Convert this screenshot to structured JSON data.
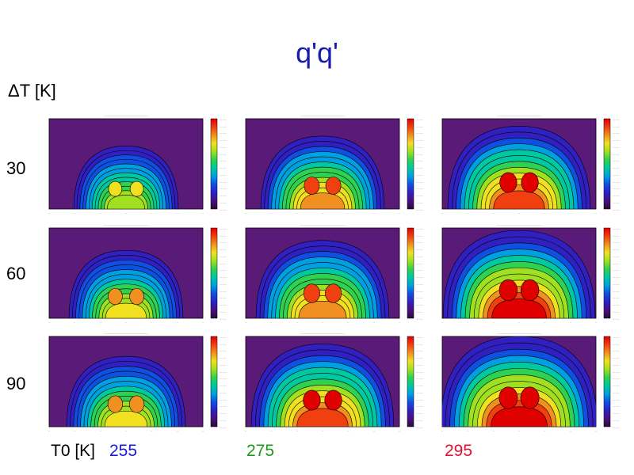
{
  "title": "q'q'",
  "row_axis_label": "ΔT [K]",
  "col_axis_label": "T0 [K]",
  "rows": [
    "30",
    "60",
    "90"
  ],
  "cols": [
    {
      "label": "255",
      "color": "#1a1ad6"
    },
    {
      "label": "275",
      "color": "#1a9a1a"
    },
    {
      "label": "295",
      "color": "#e0102e"
    }
  ],
  "colors": {
    "title": "#1b1bb0",
    "background_field": "#5a1a78",
    "colorbar": [
      "#2a0a3a",
      "#4a1080",
      "#3020c0",
      "#1050e0",
      "#00a0e0",
      "#00c8a0",
      "#30d050",
      "#a0e020",
      "#f0e020",
      "#f09020",
      "#f04010",
      "#e00000"
    ]
  },
  "chart_data": {
    "type": "heatmap",
    "title": "q'q'",
    "rows_label": "ΔT [K]",
    "cols_label": "T0 [K]",
    "row_values": [
      30,
      60,
      90
    ],
    "col_values": [
      255,
      275,
      295
    ],
    "intensity": [
      [
        0.45,
        0.65,
        0.85
      ],
      [
        0.55,
        0.75,
        0.95
      ],
      [
        0.6,
        0.85,
        1.0
      ]
    ]
  }
}
